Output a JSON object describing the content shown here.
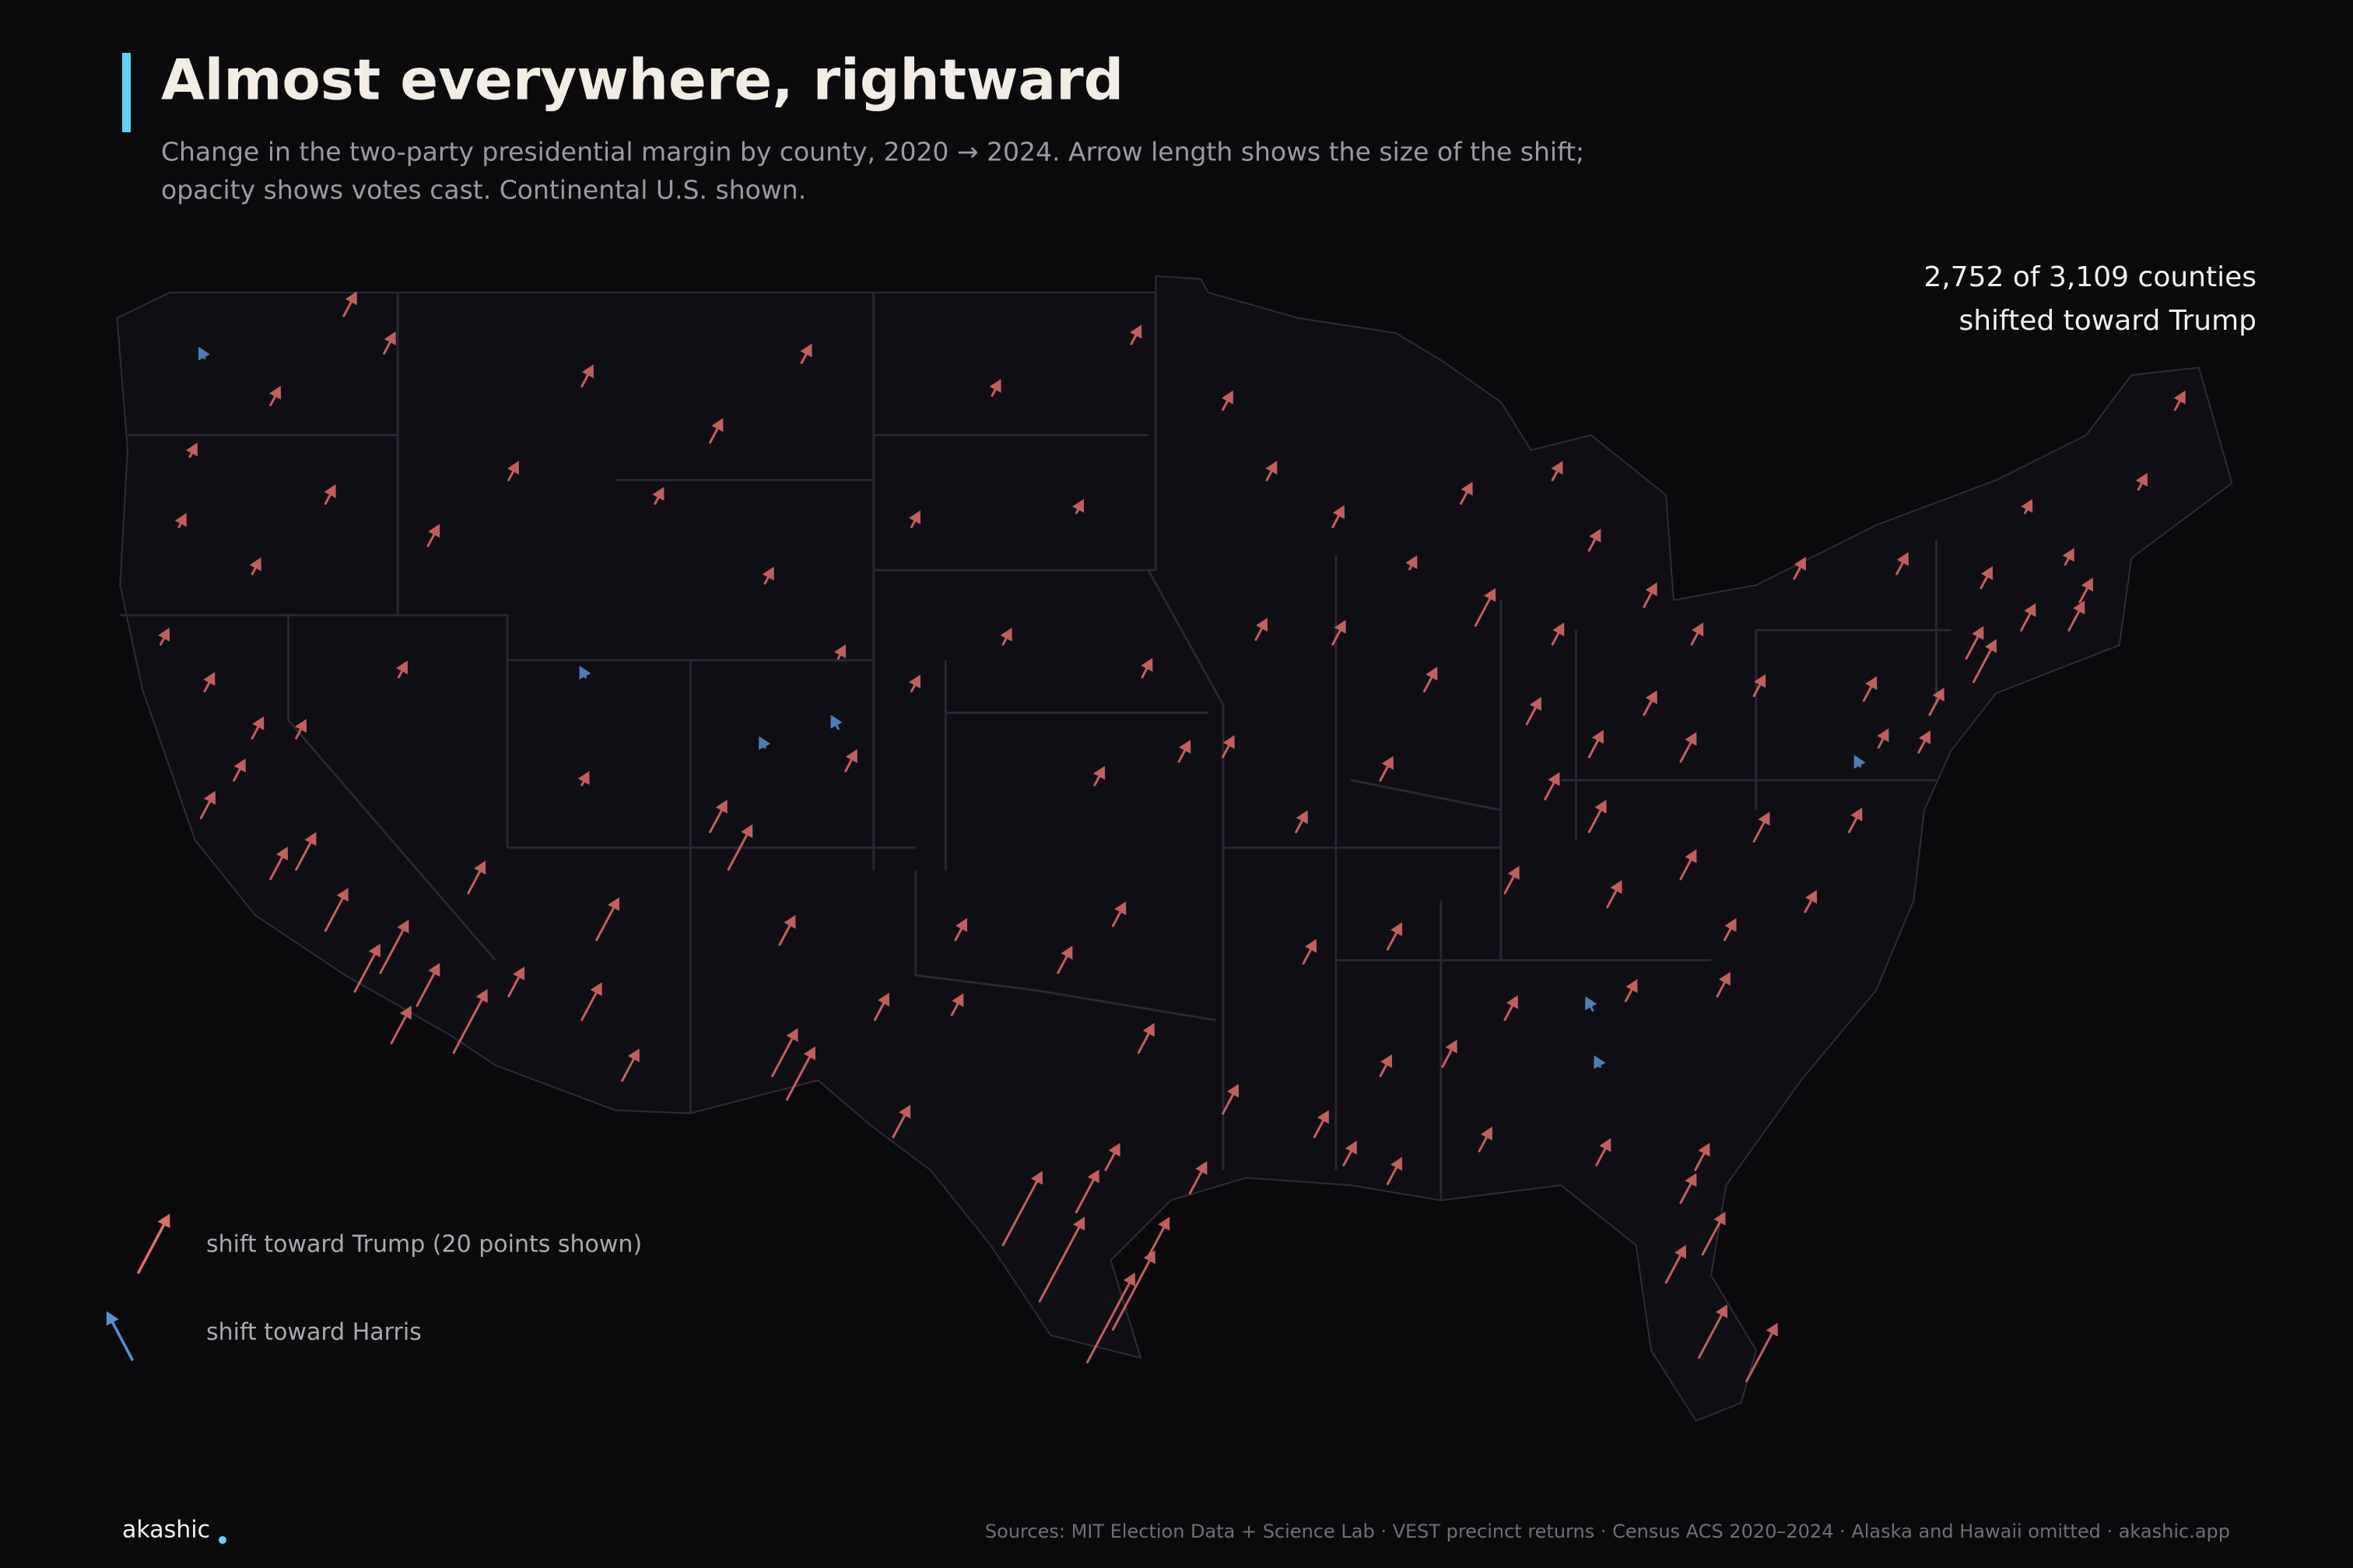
{
  "header": {
    "title": "Almost everywhere, rightward",
    "subtitle": [
      "Change in the two-party presidential margin by county, 2020 → 2024. Arrow length shows the size of the shift;",
      "opacity shows votes cast. Continental U.S. shown."
    ]
  },
  "callout": [
    "2,752 of 3,109 counties",
    "shifted toward Trump"
  ],
  "map": {
    "trump_color": "#e06c6c",
    "harris_color": "#5b8fd0",
    "arrows": {
      "lon": [
        -122.4,
        -121.5,
        -120.5,
        -119.8,
        -119,
        -118.2,
        -117.2,
        -116.5,
        -115.5,
        -117.5,
        -121,
        -122.3,
        -123.5,
        -122.7,
        -122.3,
        -120.5,
        -117.4,
        -123,
        -119,
        -121,
        -118.5,
        -116.2,
        -114,
        -112,
        -108.5,
        -106,
        -110,
        -107,
        -105,
        -115.1,
        -119.8,
        -117,
        -111.9,
        -112,
        -112,
        -110.9,
        -111.6,
        -114,
        -106.6,
        -106.8,
        -104,
        -108,
        -105,
        -107,
        -104.8,
        -103,
        -108.5,
        -100.8,
        -97,
        -103,
        -98.5,
        -100.5,
        -96.7,
        -98,
        -95.7,
        -97.5,
        -99,
        -101.8,
        -97.7,
        -98.5,
        -95.4,
        -96.8,
        -99.5,
        -98.2,
        -97.5,
        -100.5,
        -101.9,
        -106.4,
        -103.5,
        -94.5,
        -96.5,
        -93.3,
        -94.5,
        -91.5,
        -89.4,
        -88,
        -93.6,
        -91.5,
        -90.2,
        -92.5,
        -94.5,
        -87.6,
        -89,
        -86.2,
        -85.5,
        -83,
        -84.5,
        -85.5,
        -83,
        -81.7,
        -84.5,
        -82,
        -90,
        -86.8,
        -84,
        -85.7,
        -84.5,
        -82,
        -80,
        -77.4,
        -80.8,
        -78.6,
        -81,
        -84.4,
        -84.2,
        -83.5,
        -86.8,
        -88.5,
        -90.2,
        -92,
        -91.2,
        -90,
        -92.3,
        -87.5,
        -84.3,
        -82.4,
        -81.4,
        -80.2,
        -81.5,
        -82,
        -81.6,
        -80,
        -77,
        -75.2,
        -74,
        -74.2,
        -73.8,
        -76.1,
        -78.9,
        -72.7,
        -71.4,
        -71.1,
        -72.6,
        -71.5,
        -69.5,
        -68.5,
        -76.6,
        -77.1,
        -75.5
      ],
      "lat": [
        37.8,
        38.6,
        36.5,
        36.7,
        35.4,
        34.1,
        33,
        33.8,
        32.8,
        34.5,
        39.5,
        40.5,
        41.5,
        45.5,
        47.6,
        46.6,
        47.7,
        44,
        44.5,
        43,
        48.5,
        43.6,
        45,
        47,
        45.8,
        47.5,
        44.5,
        42.8,
        41.2,
        36.2,
        39.5,
        40.8,
        40.8,
        38.5,
        33.5,
        32.2,
        35.2,
        34,
        35.1,
        32.3,
        33.5,
        36.7,
        39.7,
        39.3,
        38.8,
        40.5,
        37.5,
        46.8,
        47.9,
        44,
        44.3,
        41.5,
        40.8,
        38.5,
        39,
        35.5,
        34.5,
        35.2,
        30.3,
        29.4,
        29.8,
        32.8,
        27.5,
        26.2,
        26.9,
        28.7,
        33.6,
        31.8,
        31,
        31.5,
        28.5,
        45,
        46.5,
        44,
        43.1,
        44.5,
        41.6,
        41.5,
        38.6,
        37.5,
        39.1,
        41.9,
        40.5,
        39.8,
        41.5,
        42.3,
        43.5,
        45,
        40,
        41.5,
        39.1,
        39,
        35,
        36.2,
        35.9,
        38.2,
        37.5,
        36.5,
        37.3,
        37.5,
        35.2,
        35.8,
        34,
        33.7,
        32.5,
        33.9,
        33.5,
        32.5,
        32.3,
        31,
        30.4,
        30,
        34.7,
        30.7,
        30.4,
        27.9,
        28.5,
        25.8,
        26.3,
        29.6,
        30.3,
        40.4,
        40.3,
        40,
        40.7,
        41.2,
        42.7,
        43,
        42.9,
        41.8,
        41.8,
        42.4,
        44.3,
        43.2,
        44.8,
        46.5,
        39.3,
        38.9,
        39.2
      ],
      "shift": [
        8,
        6,
        10,
        12,
        14,
        16,
        12,
        14,
        22,
        18,
        6,
        5,
        4,
        3,
        -2,
        5,
        6,
        3,
        5,
        4,
        7,
        6,
        5,
        6,
        7,
        5,
        4,
        4,
        3,
        10,
        5,
        4,
        -2,
        3,
        12,
        10,
        14,
        9,
        9,
        16,
        8,
        15,
        -3,
        -2,
        6,
        4,
        10,
        4,
        5,
        4,
        3,
        4,
        5,
        5,
        6,
        7,
        8,
        6,
        8,
        14,
        10,
        9,
        30,
        32,
        28,
        26,
        6,
        18,
        10,
        9,
        12,
        5,
        5,
        6,
        3,
        6,
        6,
        7,
        7,
        6,
        6,
        12,
        7,
        8,
        6,
        7,
        6,
        5,
        7,
        6,
        8,
        9,
        8,
        8,
        8,
        8,
        10,
        9,
        9,
        7,
        6,
        6,
        7,
        -3,
        -2,
        6,
        7,
        8,
        6,
        8,
        7,
        8,
        7,
        7,
        8,
        12,
        14,
        20,
        18,
        9,
        8,
        6,
        7,
        8,
        14,
        10,
        6,
        6,
        6,
        8,
        9,
        7,
        3,
        4,
        4,
        5,
        5,
        -2,
        6
      ]
    }
  },
  "legend": {
    "trump": "shift toward Trump  (20 points shown)",
    "harris": "shift toward Harris",
    "shown_points": 20
  },
  "footer": {
    "logo": "akashic",
    "sources": "Sources: MIT Election Data + Science Lab · VEST precinct returns · Census ACS 2020–2024 · Alaska and Hawaii omitted  ·  akashic.app"
  }
}
